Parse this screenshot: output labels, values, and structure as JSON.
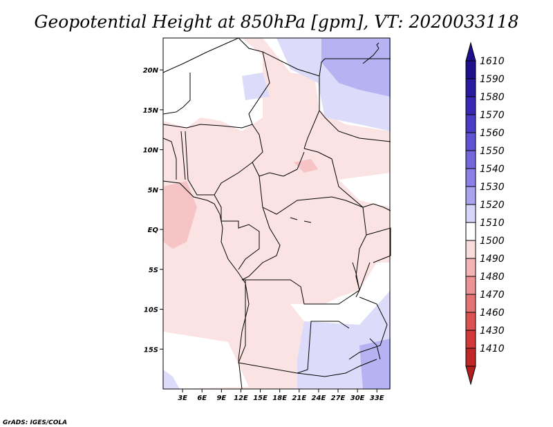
{
  "title": "Geopotential Height at 850hPa [gpm], VT: 2020033118",
  "credit": "GrADS: IGES/COLA",
  "map": {
    "lat_range": [
      -20,
      24
    ],
    "lon_range": [
      0,
      35
    ],
    "lat_ticks": [
      {
        "value": 20,
        "label": "20N"
      },
      {
        "value": 15,
        "label": "15N"
      },
      {
        "value": 10,
        "label": "10N"
      },
      {
        "value": 5,
        "label": "5N"
      },
      {
        "value": 0,
        "label": "EQ"
      },
      {
        "value": -5,
        "label": "5S"
      },
      {
        "value": -10,
        "label": "10S"
      },
      {
        "value": -15,
        "label": "15S"
      }
    ],
    "lon_ticks": [
      {
        "value": 3,
        "label": "3E"
      },
      {
        "value": 6,
        "label": "6E"
      },
      {
        "value": 9,
        "label": "9E"
      },
      {
        "value": 12,
        "label": "12E"
      },
      {
        "value": 15,
        "label": "15E"
      },
      {
        "value": 18,
        "label": "18E"
      },
      {
        "value": 21,
        "label": "21E"
      },
      {
        "value": 24,
        "label": "24E"
      },
      {
        "value": 27,
        "label": "27E"
      },
      {
        "value": 30,
        "label": "30E"
      },
      {
        "value": 33,
        "label": "33E"
      }
    ]
  },
  "colorbar": {
    "levels": [
      {
        "label": "1610",
        "color": "#1e0f8c"
      },
      {
        "label": "1590",
        "color": "#2a1ca0"
      },
      {
        "label": "1580",
        "color": "#3828b4"
      },
      {
        "label": "1570",
        "color": "#4a3cc6"
      },
      {
        "label": "1560",
        "color": "#5f52d4"
      },
      {
        "label": "1550",
        "color": "#7467de"
      },
      {
        "label": "1540",
        "color": "#8c80e8"
      },
      {
        "label": "1530",
        "color": "#aaa4f0"
      },
      {
        "label": "1520",
        "color": "#d6d6fa"
      },
      {
        "label": "1510",
        "color": "#ffffff"
      },
      {
        "label": "1500",
        "color": "#fadcdc"
      },
      {
        "label": "1490",
        "color": "#f4b4b4"
      },
      {
        "label": "1480",
        "color": "#ec9494"
      },
      {
        "label": "1470",
        "color": "#e47474"
      },
      {
        "label": "1460",
        "color": "#dc5252"
      },
      {
        "label": "1430",
        "color": "#d23a3a"
      },
      {
        "label": "1410",
        "color": "#c02828"
      }
    ],
    "bottom_color": "#b01e1e"
  }
}
